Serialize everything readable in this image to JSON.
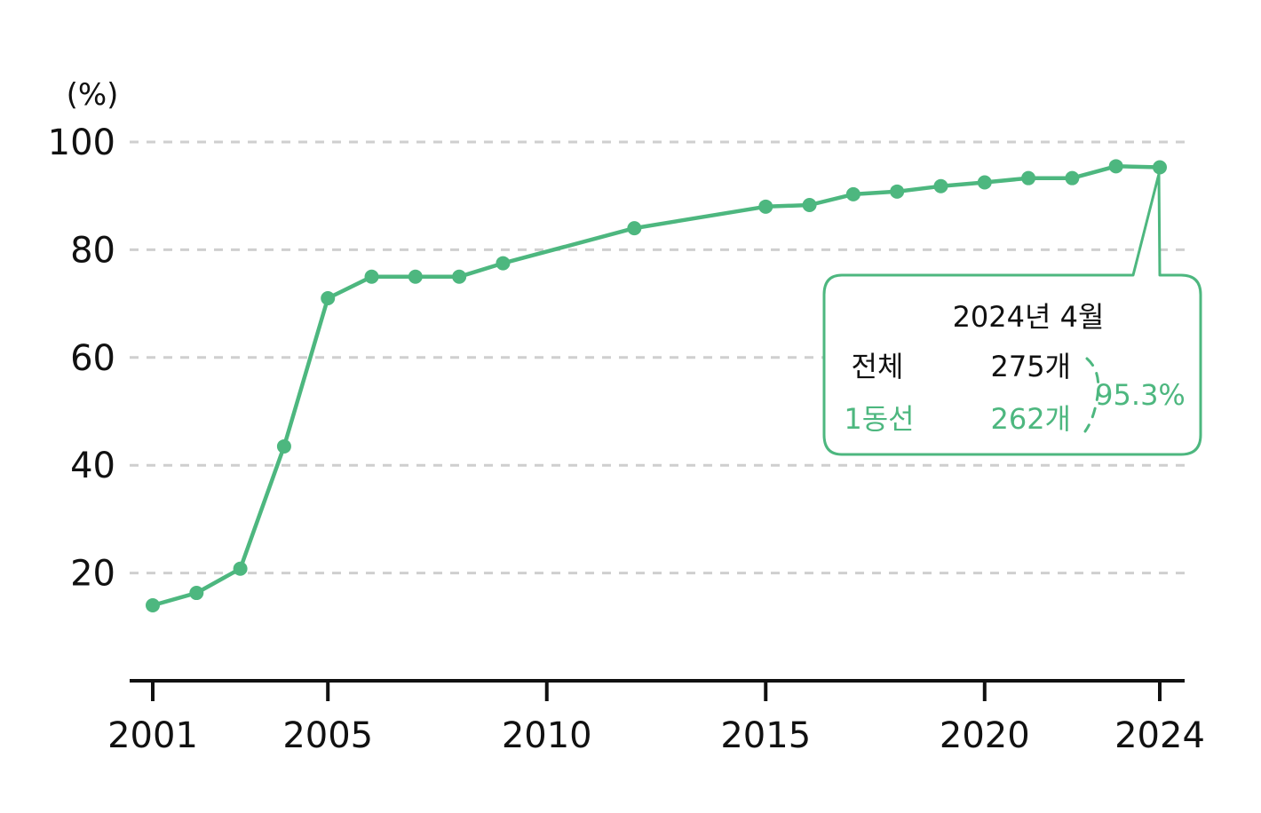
{
  "chart_data": {
    "type": "line",
    "title": "",
    "xlabel": "",
    "ylabel": "(%)",
    "ylim": [
      0,
      100
    ],
    "xlim": [
      2001,
      2024
    ],
    "grid": true,
    "y_ticks": [
      20,
      40,
      60,
      80,
      100
    ],
    "y_tick_labels": [
      "20",
      "40",
      "60",
      "80",
      "100"
    ],
    "x_ticks": [
      2001,
      2005,
      2010,
      2015,
      2020,
      2024
    ],
    "x_tick_labels": [
      "2001",
      "2005",
      "2010",
      "2015",
      "2020",
      "2024"
    ],
    "series": [
      {
        "name": "1동선",
        "color": "#4db77f",
        "points": [
          {
            "x": 2001,
            "y": 14.0
          },
          {
            "x": 2002,
            "y": 16.3
          },
          {
            "x": 2003,
            "y": 20.8
          },
          {
            "x": 2004,
            "y": 43.5
          },
          {
            "x": 2005,
            "y": 71.0
          },
          {
            "x": 2006,
            "y": 75.0
          },
          {
            "x": 2007,
            "y": 75.0
          },
          {
            "x": 2008,
            "y": 75.0
          },
          {
            "x": 2009,
            "y": 77.5
          },
          {
            "x": 2012,
            "y": 84.0
          },
          {
            "x": 2015,
            "y": 88.0
          },
          {
            "x": 2016,
            "y": 88.3
          },
          {
            "x": 2017,
            "y": 90.3
          },
          {
            "x": 2018,
            "y": 90.8
          },
          {
            "x": 2019,
            "y": 91.8
          },
          {
            "x": 2020,
            "y": 92.5
          },
          {
            "x": 2021,
            "y": 93.3
          },
          {
            "x": 2022,
            "y": 93.3
          },
          {
            "x": 2023,
            "y": 95.5
          },
          {
            "x": 2024,
            "y": 95.3
          }
        ]
      }
    ],
    "annotation": {
      "title": "2024년 4월",
      "rows": [
        {
          "label": "전체",
          "value": "275개",
          "color": "#111111"
        },
        {
          "label": "1동선",
          "value": "262개",
          "color": "#4db77f"
        }
      ],
      "ratio": "95.3%",
      "ratio_color": "#4db77f",
      "target": {
        "x": 2024,
        "y": 95.3
      }
    }
  }
}
